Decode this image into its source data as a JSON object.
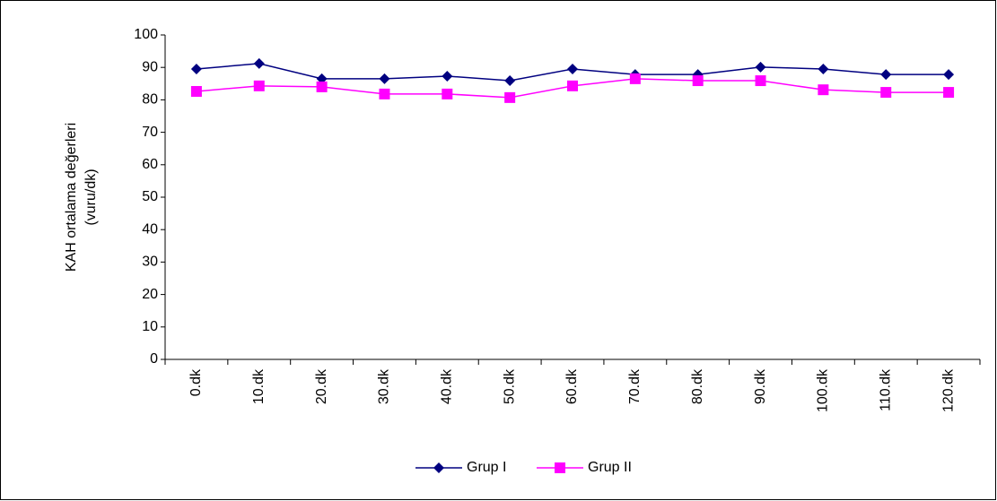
{
  "chart_data": {
    "type": "line",
    "ylabel": [
      "KAH ortalama değerleri",
      "(vuru/dk)"
    ],
    "categories": [
      "0.dk",
      "10.dk",
      "20.dk",
      "30.dk",
      "40.dk",
      "50.dk",
      "60.dk",
      "70.dk",
      "80.dk",
      "90.dk",
      "100.dk",
      "110.dk",
      "120.dk"
    ],
    "series": [
      {
        "name": "Grup I",
        "color": "#000080",
        "marker": "diamond",
        "values": [
          89.5,
          91.2,
          86.5,
          86.5,
          87.3,
          85.9,
          89.5,
          87.8,
          87.8,
          90.1,
          89.5,
          87.8,
          87.8
        ]
      },
      {
        "name": "Grup II",
        "color": "#ff00ff",
        "marker": "square",
        "values": [
          82.6,
          84.3,
          84.0,
          81.8,
          81.8,
          80.7,
          84.3,
          86.5,
          85.9,
          85.9,
          83.1,
          82.3,
          82.3
        ]
      }
    ],
    "ylim": [
      0,
      100
    ],
    "yticks": [
      0,
      10,
      20,
      30,
      40,
      50,
      60,
      70,
      80,
      90,
      100
    ],
    "grid": false,
    "legend": "bottom"
  }
}
